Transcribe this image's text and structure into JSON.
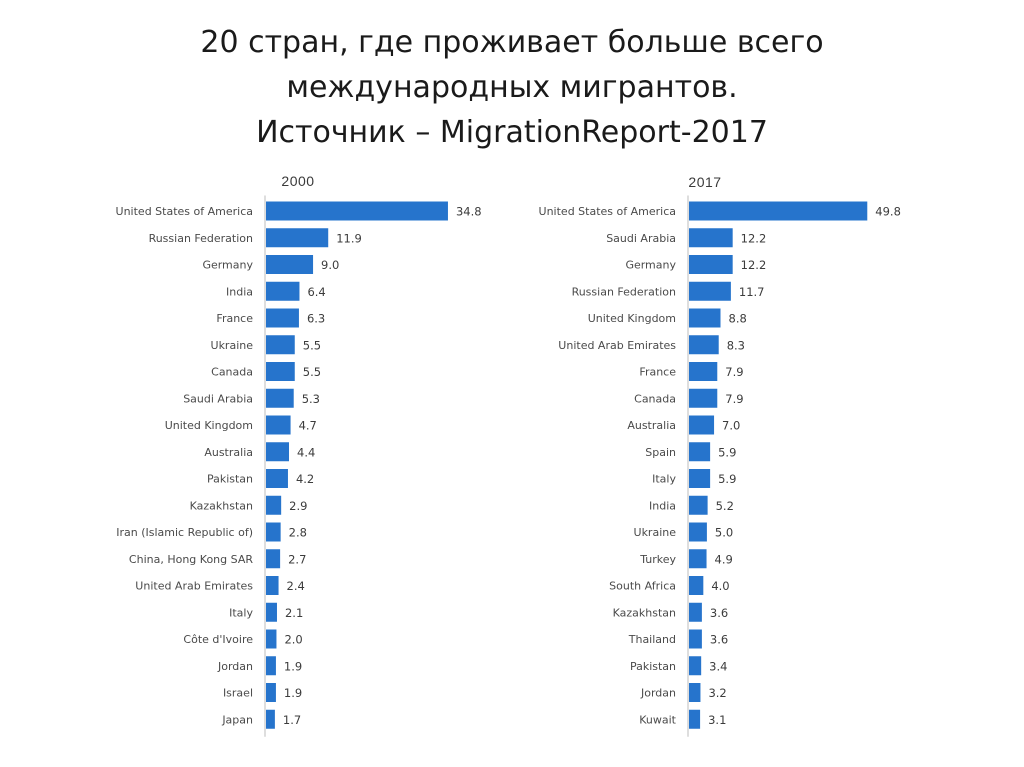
{
  "slide": {
    "title_lines": [
      "20 стран, где проживает больше всего",
      "международных мигрантов.",
      "Источник – MigrationReport-2017"
    ]
  },
  "colors": {
    "bar": "#2674cc",
    "axis": "#bdbdbd"
  },
  "chart_data": [
    {
      "type": "bar",
      "orientation": "horizontal",
      "title": "2000",
      "categories": [
        "United States of America",
        "Russian Federation",
        "Germany",
        "India",
        "France",
        "Ukraine",
        "Canada",
        "Saudi Arabia",
        "United Kingdom",
        "Australia",
        "Pakistan",
        "Kazakhstan",
        "Iran (Islamic Republic of)",
        "China, Hong Kong SAR",
        "United Arab Emirates",
        "Italy",
        "Côte d'Ivoire",
        "Jordan",
        "Israel",
        "Japan"
      ],
      "values": [
        34.8,
        11.9,
        9.0,
        6.4,
        6.3,
        5.5,
        5.5,
        5.3,
        4.7,
        4.4,
        4.2,
        2.9,
        2.8,
        2.7,
        2.4,
        2.1,
        2.0,
        1.9,
        1.9,
        1.7
      ],
      "value_labels": [
        "34.8",
        "11.9",
        "9.0",
        "6.4",
        "6.3",
        "5.5",
        "5.5",
        "5.3",
        "4.7",
        "4.4",
        "4.2",
        "2.9",
        "2.8",
        "2.7",
        "2.4",
        "2.1",
        "2.0",
        "1.9",
        "1.9",
        "1.7"
      ],
      "xlim": [
        0,
        35
      ],
      "grid": false,
      "legend": "none"
    },
    {
      "type": "bar",
      "orientation": "horizontal",
      "title": "2017",
      "categories": [
        "United States of America",
        "Saudi Arabia",
        "Germany",
        "Russian Federation",
        "United Kingdom",
        "United Arab Emirates",
        "France",
        "Canada",
        "Australia",
        "Spain",
        "Italy",
        "India",
        "Ukraine",
        "Turkey",
        "South Africa",
        "Kazakhstan",
        "Thailand",
        "Pakistan",
        "Jordan",
        "Kuwait"
      ],
      "values": [
        49.8,
        12.2,
        12.2,
        11.7,
        8.8,
        8.3,
        7.9,
        7.9,
        7.0,
        5.9,
        5.9,
        5.2,
        5.0,
        4.9,
        4.0,
        3.6,
        3.6,
        3.4,
        3.2,
        3.1
      ],
      "value_labels": [
        "49.8",
        "12.2",
        "12.2",
        "11.7",
        "8.8",
        "8.3",
        "7.9",
        "7.9",
        "7.0",
        "5.9",
        "5.9",
        "5.2",
        "5.0",
        "4.9",
        "4.0",
        "3.6",
        "3.6",
        "3.4",
        "3.2",
        "3.1"
      ],
      "xlim": [
        0,
        50
      ],
      "grid": false,
      "legend": "none"
    }
  ]
}
